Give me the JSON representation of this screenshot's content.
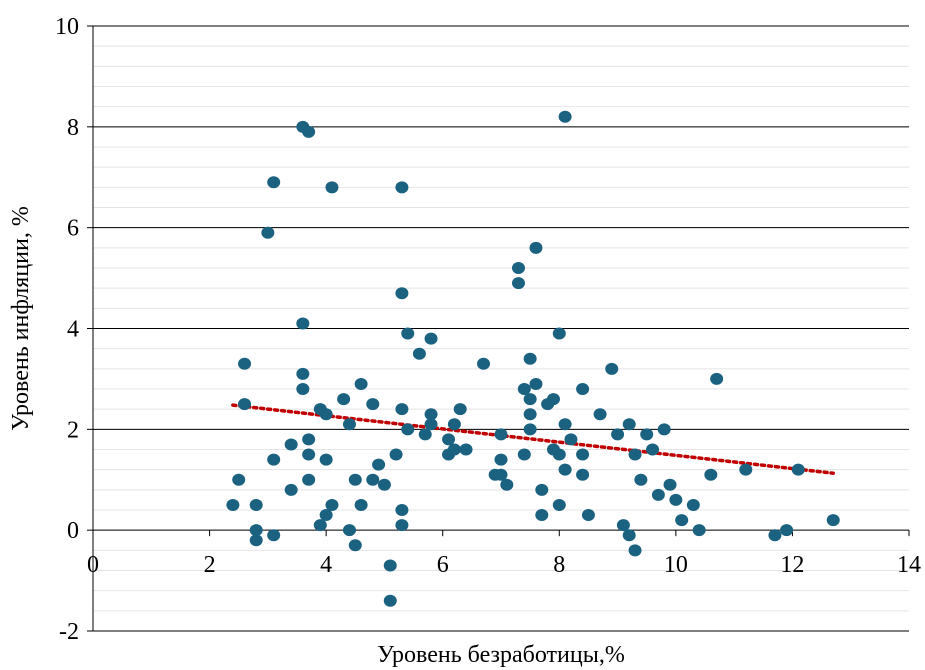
{
  "chart_data": {
    "type": "scatter",
    "xlabel": "Уровень безработицы,%",
    "ylabel": "Уровень инфляции, %",
    "xlim": [
      0,
      14
    ],
    "ylim": [
      -2,
      10
    ],
    "x_ticks": [
      0,
      2,
      4,
      6,
      8,
      10,
      12,
      14
    ],
    "y_ticks": [
      -2,
      0,
      2,
      4,
      6,
      8,
      10
    ],
    "x_tick_labels": [
      "0",
      "2",
      "4",
      "6",
      "8",
      "10",
      "12",
      "14"
    ],
    "y_tick_labels": [
      "-2",
      "0",
      "2",
      "4",
      "6",
      "8",
      "10"
    ],
    "grid": "major and minor horizontal lines",
    "marker_color": "#1b6280",
    "trendline_color": "#c00000",
    "trendline": {
      "type": "linear",
      "style": "dotted",
      "x": [
        2.4,
        12.7
      ],
      "y": [
        2.48,
        1.13
      ]
    },
    "points": [
      [
        2.4,
        0.5
      ],
      [
        2.5,
        1.0
      ],
      [
        2.6,
        3.3
      ],
      [
        2.6,
        2.5
      ],
      [
        2.8,
        0.5
      ],
      [
        2.8,
        0.0
      ],
      [
        2.8,
        -0.2
      ],
      [
        3.0,
        5.9
      ],
      [
        3.1,
        6.9
      ],
      [
        3.1,
        1.4
      ],
      [
        3.1,
        -0.1
      ],
      [
        3.4,
        1.7
      ],
      [
        3.4,
        0.8
      ],
      [
        3.6,
        8.0
      ],
      [
        3.7,
        7.9
      ],
      [
        3.6,
        4.1
      ],
      [
        3.6,
        3.1
      ],
      [
        3.6,
        2.8
      ],
      [
        3.7,
        1.8
      ],
      [
        3.7,
        1.5
      ],
      [
        3.7,
        1.0
      ],
      [
        3.9,
        2.4
      ],
      [
        3.9,
        0.1
      ],
      [
        4.0,
        2.3
      ],
      [
        4.0,
        1.4
      ],
      [
        4.0,
        0.3
      ],
      [
        4.1,
        6.8
      ],
      [
        4.1,
        0.5
      ],
      [
        4.3,
        2.6
      ],
      [
        4.4,
        2.1
      ],
      [
        4.4,
        0.0
      ],
      [
        4.5,
        1.0
      ],
      [
        4.5,
        -0.3
      ],
      [
        4.6,
        2.9
      ],
      [
        4.6,
        0.5
      ],
      [
        4.8,
        2.5
      ],
      [
        4.8,
        1.0
      ],
      [
        4.9,
        1.3
      ],
      [
        5.0,
        0.9
      ],
      [
        5.1,
        -0.7
      ],
      [
        5.1,
        -1.4
      ],
      [
        5.2,
        1.5
      ],
      [
        5.3,
        6.8
      ],
      [
        5.3,
        4.7
      ],
      [
        5.3,
        2.4
      ],
      [
        5.3,
        0.4
      ],
      [
        5.3,
        0.1
      ],
      [
        5.4,
        3.9
      ],
      [
        5.4,
        2.0
      ],
      [
        5.6,
        3.5
      ],
      [
        5.7,
        1.9
      ],
      [
        5.8,
        3.8
      ],
      [
        5.8,
        2.3
      ],
      [
        5.8,
        2.1
      ],
      [
        6.1,
        1.8
      ],
      [
        6.1,
        1.5
      ],
      [
        6.2,
        2.1
      ],
      [
        6.2,
        1.6
      ],
      [
        6.3,
        2.4
      ],
      [
        6.4,
        1.6
      ],
      [
        6.7,
        3.3
      ],
      [
        6.9,
        1.1
      ],
      [
        7.0,
        1.9
      ],
      [
        7.0,
        1.4
      ],
      [
        7.0,
        1.1
      ],
      [
        7.1,
        0.9
      ],
      [
        7.3,
        5.2
      ],
      [
        7.3,
        4.9
      ],
      [
        7.4,
        2.8
      ],
      [
        7.4,
        1.5
      ],
      [
        7.5,
        3.4
      ],
      [
        7.5,
        2.6
      ],
      [
        7.5,
        2.3
      ],
      [
        7.5,
        2.0
      ],
      [
        7.6,
        5.6
      ],
      [
        7.6,
        2.9
      ],
      [
        7.7,
        0.8
      ],
      [
        7.7,
        0.3
      ],
      [
        7.8,
        2.5
      ],
      [
        7.9,
        2.6
      ],
      [
        7.9,
        1.6
      ],
      [
        8.0,
        3.9
      ],
      [
        8.0,
        1.5
      ],
      [
        8.0,
        0.5
      ],
      [
        8.1,
        8.2
      ],
      [
        8.1,
        2.1
      ],
      [
        8.1,
        1.2
      ],
      [
        8.2,
        1.8
      ],
      [
        8.4,
        2.8
      ],
      [
        8.4,
        1.5
      ],
      [
        8.4,
        1.1
      ],
      [
        8.5,
        0.3
      ],
      [
        8.7,
        2.3
      ],
      [
        8.9,
        3.2
      ],
      [
        9.0,
        1.9
      ],
      [
        9.1,
        0.1
      ],
      [
        9.2,
        2.1
      ],
      [
        9.2,
        -0.1
      ],
      [
        9.3,
        1.5
      ],
      [
        9.3,
        -0.4
      ],
      [
        9.4,
        1.0
      ],
      [
        9.5,
        1.9
      ],
      [
        9.6,
        1.6
      ],
      [
        9.7,
        0.7
      ],
      [
        9.8,
        2.0
      ],
      [
        9.9,
        0.9
      ],
      [
        10.0,
        0.6
      ],
      [
        10.1,
        0.2
      ],
      [
        10.3,
        0.5
      ],
      [
        10.4,
        0.0
      ],
      [
        10.6,
        1.1
      ],
      [
        10.7,
        3.0
      ],
      [
        11.2,
        1.2
      ],
      [
        11.7,
        -0.1
      ],
      [
        11.9,
        0.0
      ],
      [
        12.1,
        1.2
      ],
      [
        12.7,
        0.2
      ]
    ]
  }
}
